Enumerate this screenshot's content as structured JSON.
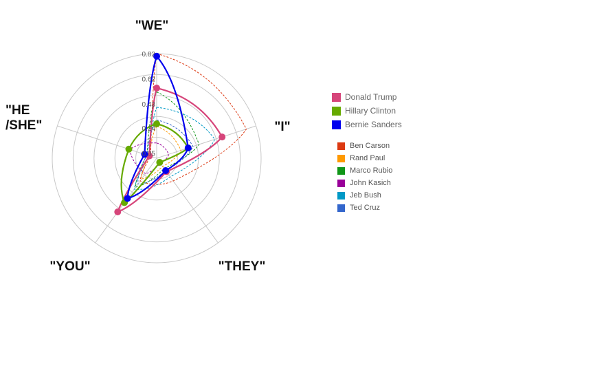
{
  "chart_data": {
    "type": "radar",
    "title": "",
    "axes": [
      "\"WE\"",
      "\"I\"",
      "\"THEY\"",
      "\"YOU\"",
      "\"HE\n/SHE\""
    ],
    "ticks": [
      "0.05",
      "0.24",
      "0.43",
      "0.62",
      "0.82"
    ],
    "rlim": [
      0,
      0.82
    ],
    "grid": true,
    "series": [
      {
        "name": "Donald Trump",
        "color": "#d6457a",
        "style": "solid",
        "marker": true,
        "values": [
          0.55,
          0.54,
          0.13,
          0.52,
          0.06
        ]
      },
      {
        "name": "Hillary Clinton",
        "color": "#66aa00",
        "style": "solid",
        "marker": true,
        "values": [
          0.27,
          0.26,
          0.04,
          0.43,
          0.23
        ]
      },
      {
        "name": "Bernie Sanders",
        "color": "#0000ee",
        "style": "solid",
        "marker": true,
        "values": [
          0.8,
          0.26,
          0.12,
          0.39,
          0.1
        ]
      },
      {
        "name": "Ben Carson",
        "color": "#dc3912",
        "style": "dashed",
        "marker": false,
        "values": [
          0.82,
          0.74,
          0.22,
          0.22,
          0.05
        ]
      },
      {
        "name": "Rand Paul",
        "color": "#ff9900",
        "style": "dashed",
        "marker": false,
        "values": [
          0.25,
          0.2,
          0.08,
          0.2,
          0.06
        ]
      },
      {
        "name": "Marco Rubio",
        "color": "#109618",
        "style": "dashed",
        "marker": false,
        "values": [
          0.52,
          0.35,
          0.1,
          0.28,
          0.08
        ]
      },
      {
        "name": "John Kasich",
        "color": "#990099",
        "style": "dashed",
        "marker": false,
        "values": [
          0.12,
          0.1,
          0.05,
          0.15,
          0.22
        ]
      },
      {
        "name": "Jeb Bush",
        "color": "#0099c6",
        "style": "dashed",
        "marker": false,
        "values": [
          0.4,
          0.48,
          0.18,
          0.3,
          0.06
        ]
      },
      {
        "name": "Ted Cruz",
        "color": "#3366cc",
        "style": "dashed",
        "marker": false,
        "values": [
          0.3,
          0.3,
          0.12,
          0.25,
          0.08
        ]
      }
    ],
    "legend": {
      "placement": "right",
      "main": [
        "Donald Trump",
        "Hillary Clinton",
        "Bernie Sanders"
      ],
      "secondary": [
        "Ben Carson",
        "Rand Paul",
        "Marco Rubio",
        "John Kasich",
        "Jeb Bush",
        "Ted Cruz"
      ]
    }
  }
}
